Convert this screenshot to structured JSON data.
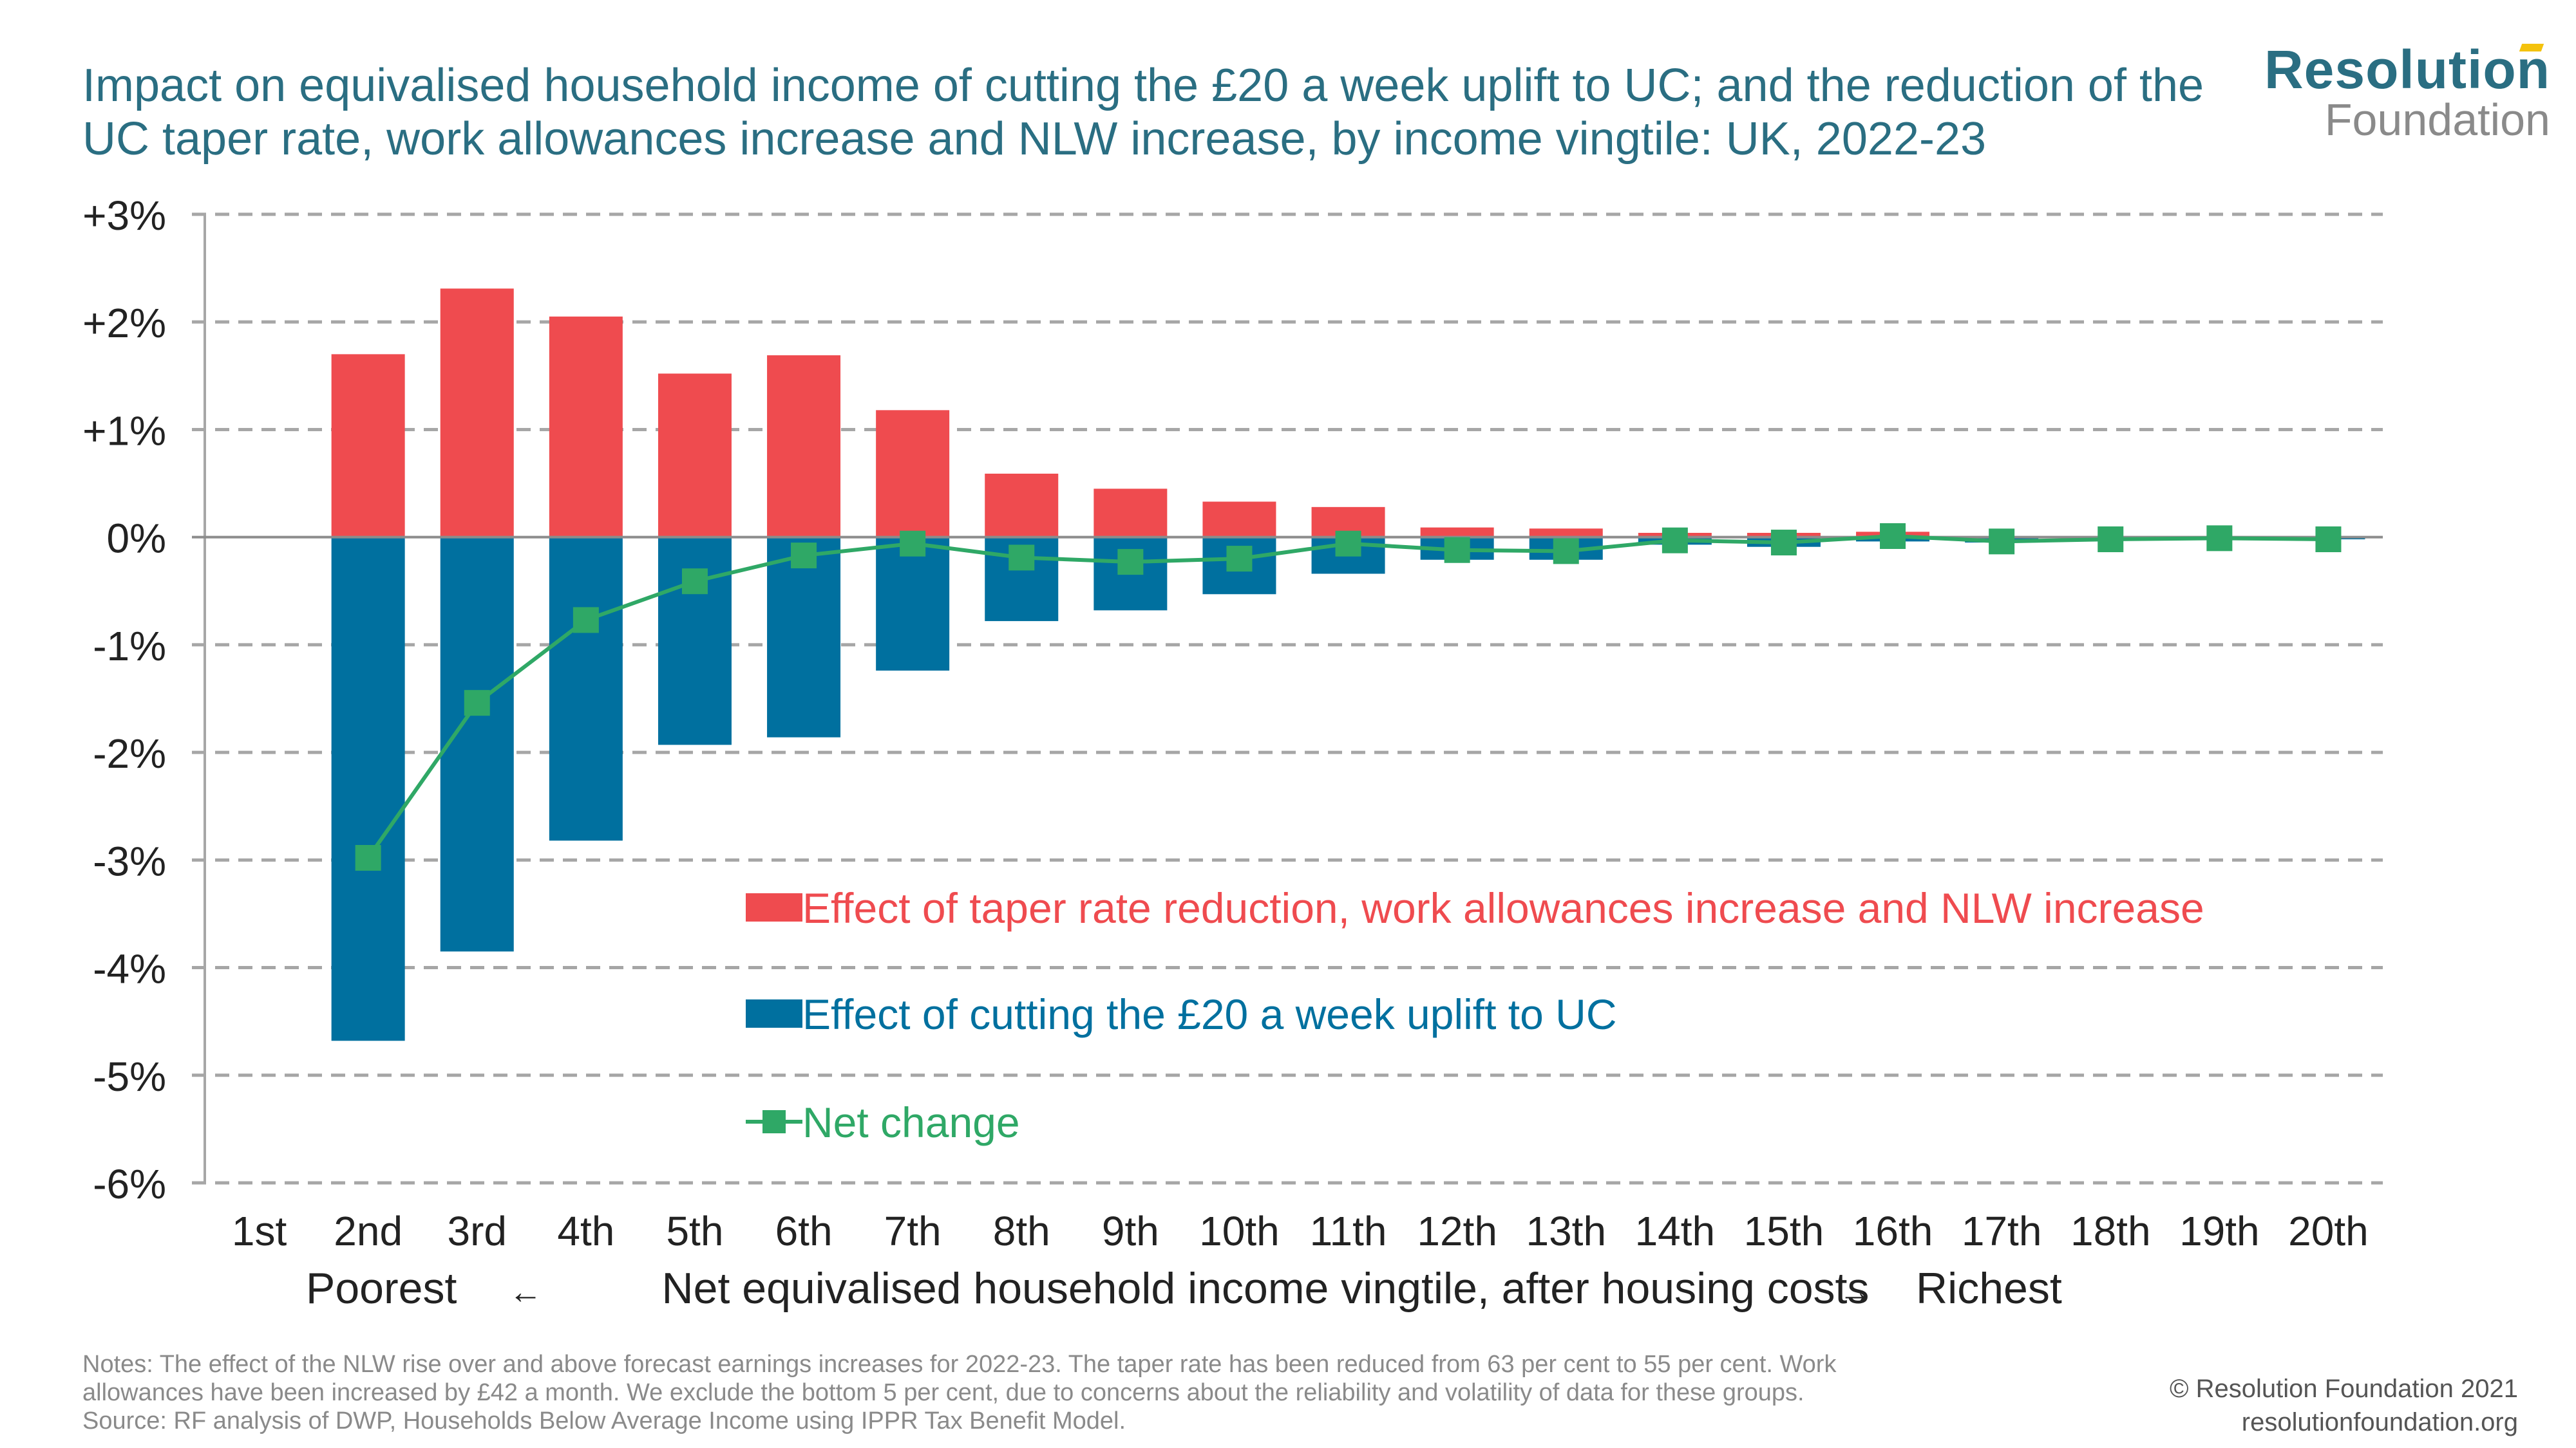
{
  "title": "Impact on equivalised household income of cutting the £20 a week uplift to UC; and the reduction of the UC taper rate, work allowances increase and NLW increase, by income vingtile: UK, 2022-23",
  "logo": {
    "top": "Resolution",
    "bottom": "Foundation"
  },
  "chart_data": {
    "type": "bar",
    "stacked": true,
    "categories": [
      "1st",
      "2nd",
      "3rd",
      "4th",
      "5th",
      "6th",
      "7th",
      "8th",
      "9th",
      "10th",
      "11th",
      "12th",
      "13th",
      "14th",
      "15th",
      "16th",
      "17th",
      "18th",
      "19th",
      "20th"
    ],
    "yticks": [
      "+3%",
      "+2%",
      "+1%",
      "0%",
      "-1%",
      "-2%",
      "-3%",
      "-4%",
      "-5%",
      "-6%"
    ],
    "ylim": [
      -6,
      3
    ],
    "xlabel": {
      "left": "Poorest",
      "left_arrow": "←",
      "center": "Net equivalised household income vingtile, after housing costs",
      "right_arrow": "→",
      "right": "Richest"
    },
    "grid": true,
    "legend_position": "center",
    "series": [
      {
        "name": "Effect of taper rate reduction, work allowances increase and NLW increase",
        "kind": "bar",
        "color": "#ef4b4f",
        "values": [
          null,
          1.7,
          2.31,
          2.05,
          1.52,
          1.69,
          1.18,
          0.59,
          0.45,
          0.33,
          0.28,
          0.09,
          0.08,
          0.04,
          0.04,
          0.05,
          0.01,
          0.01,
          0.01,
          0.0
        ]
      },
      {
        "name": "Effect of cutting the £20 a week uplift to UC",
        "kind": "bar",
        "color": "#00709f",
        "values": [
          null,
          -4.68,
          -3.85,
          -2.82,
          -1.93,
          -1.86,
          -1.24,
          -0.78,
          -0.68,
          -0.53,
          -0.34,
          -0.21,
          -0.21,
          -0.07,
          -0.09,
          -0.04,
          -0.05,
          -0.03,
          -0.02,
          -0.02
        ]
      },
      {
        "name": "Net change",
        "kind": "line",
        "color": "#2fa866",
        "values": [
          null,
          -2.98,
          -1.54,
          -0.77,
          -0.41,
          -0.17,
          -0.06,
          -0.19,
          -0.23,
          -0.2,
          -0.06,
          -0.12,
          -0.13,
          -0.03,
          -0.05,
          0.01,
          -0.04,
          -0.02,
          -0.01,
          -0.02
        ]
      }
    ]
  },
  "notes": [
    "Notes: The effect of the NLW rise over and above forecast earnings increases for 2022-23. The taper rate has been reduced from 63 per cent to 55 per cent. Work",
    "allowances have been increased by £42 a month. We exclude the bottom 5 per cent, due to concerns about the reliability and volatility of data for these groups.",
    "Source: RF analysis of DWP, Households Below Average Income using IPPR Tax Benefit Model."
  ],
  "copyright": [
    "© Resolution Foundation 2021",
    "resolutionfoundation.org"
  ]
}
